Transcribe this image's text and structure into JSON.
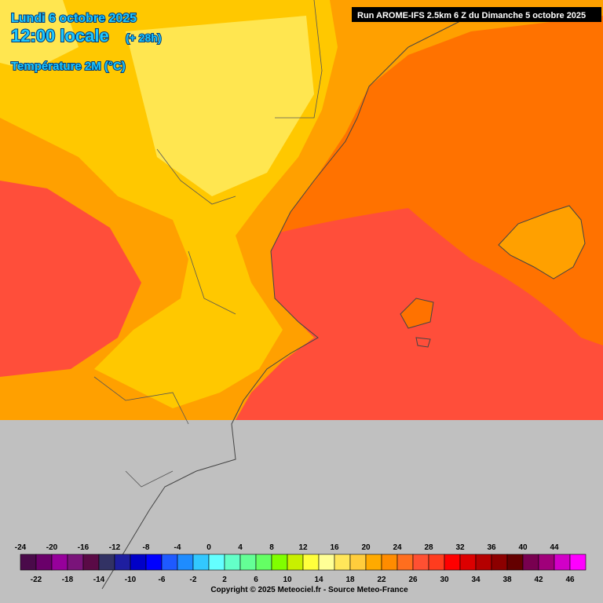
{
  "header": {
    "date": "Lundi 6 octobre 2025",
    "time": "12:00 locale",
    "offset": "(+ 28h)",
    "variable": "Température 2M (°C)",
    "run": "Run AROME-IFS 2.5km 6 Z du Dimanche 5 octobre 2025"
  },
  "legend": {
    "top_labels": [
      -24,
      -20,
      -16,
      -12,
      -8,
      -4,
      0,
      4,
      8,
      12,
      16,
      20,
      24,
      28,
      32,
      36,
      40,
      44
    ],
    "bottom_labels": [
      -22,
      -18,
      -14,
      -10,
      -6,
      -2,
      2,
      6,
      10,
      14,
      18,
      22,
      26,
      30,
      34,
      38,
      42,
      46
    ],
    "colors": [
      "#4a0a4a",
      "#6a006a",
      "#96009b",
      "#7a147a",
      "#5a0a46",
      "#323264",
      "#1e1ea0",
      "#0000c8",
      "#0000ff",
      "#1e5aff",
      "#1e8cff",
      "#32c8ff",
      "#64ffff",
      "#64ffc8",
      "#64ff96",
      "#64ff64",
      "#80ff00",
      "#c8f000",
      "#ffff3c",
      "#ffff96",
      "#ffe65a",
      "#ffcd3c",
      "#ffaa00",
      "#ff8c00",
      "#ff6e1e",
      "#ff5032",
      "#ff3c1e",
      "#ff0000",
      "#dc0000",
      "#b40000",
      "#8c0000",
      "#640000",
      "#780050",
      "#a0007a",
      "#d200c8",
      "#ff00ff"
    ]
  },
  "footer": {
    "copyright": "Copyright © 2025 Meteociel.fr - Source Meteo-France"
  }
}
